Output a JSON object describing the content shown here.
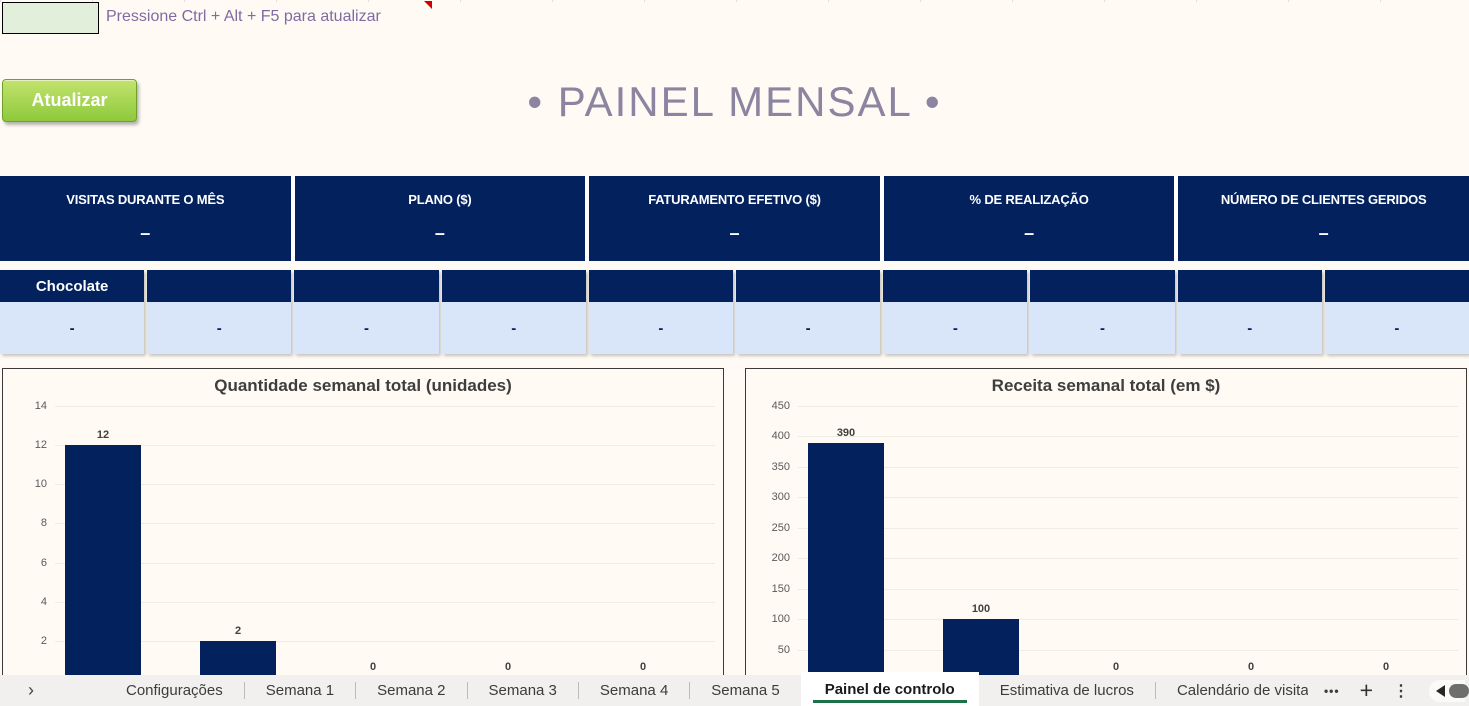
{
  "topbar": {
    "hint": "Pressione Ctrl + Alt + F5 para atualizar"
  },
  "refresh_button": {
    "label": "Atualizar"
  },
  "title": "• PAINEL MENSAL •",
  "colors": {
    "navy": "#03215C",
    "light_blue": "#D9E5F9",
    "page_bg": "#FFFBF4",
    "hint_green_cell": "#E2EFDA",
    "button_green": "#8FC93C",
    "title_purple": "#8B85A1",
    "hint_purple": "#7D6BA4",
    "active_tab_green": "#1E7145",
    "comment_red": "#D00000"
  },
  "kpis": [
    {
      "label": "VISITAS DURANTE O MÊS",
      "value": "–"
    },
    {
      "label": "PLANO ($)",
      "value": "–"
    },
    {
      "label": "FATURAMENTO EFETIVO ($)",
      "value": "–"
    },
    {
      "label": "% DE REALIZAÇÃO",
      "value": "–"
    },
    {
      "label": "NÚMERO DE CLIENTES GERIDOS",
      "value": "–"
    }
  ],
  "product_cards": [
    {
      "label": "Chocolate",
      "value": "-"
    },
    {
      "label": "",
      "value": "-"
    },
    {
      "label": "",
      "value": "-"
    },
    {
      "label": "",
      "value": "-"
    },
    {
      "label": "",
      "value": "-"
    },
    {
      "label": "",
      "value": "-"
    },
    {
      "label": "",
      "value": "-"
    },
    {
      "label": "",
      "value": "-"
    },
    {
      "label": "",
      "value": "-"
    },
    {
      "label": "",
      "value": "-"
    }
  ],
  "chart_data": [
    {
      "type": "bar",
      "title": "Quantidade semanal total (unidades)",
      "categories": [
        "",
        "",
        "",
        "",
        ""
      ],
      "values": [
        12,
        2,
        0,
        0,
        0
      ],
      "data_labels": [
        "12",
        "2",
        "0",
        "0",
        "0"
      ],
      "ylim": [
        0,
        14
      ],
      "ytick_step": 2,
      "yticks": [
        2,
        4,
        6,
        8,
        10,
        12,
        14
      ],
      "bar_color": "#03215C",
      "grid": true,
      "legend": "none"
    },
    {
      "type": "bar",
      "title": "Receita semanal total (em $)",
      "categories": [
        "",
        "",
        "",
        "",
        ""
      ],
      "values": [
        390,
        100,
        0,
        0,
        0
      ],
      "data_labels": [
        "390",
        "100",
        "0",
        "0",
        "0"
      ],
      "ylim": [
        0,
        450
      ],
      "ytick_step": 50,
      "yticks": [
        50,
        100,
        150,
        200,
        250,
        300,
        350,
        400,
        450
      ],
      "bar_color": "#03215C",
      "grid": true,
      "legend": "none"
    }
  ],
  "sheet_tabs": {
    "nav_arrow": "›",
    "tabs": [
      {
        "label": "Configurações",
        "active": false
      },
      {
        "label": "Semana 1",
        "active": false
      },
      {
        "label": "Semana 2",
        "active": false
      },
      {
        "label": "Semana 3",
        "active": false
      },
      {
        "label": "Semana 4",
        "active": false
      },
      {
        "label": "Semana 5",
        "active": false
      },
      {
        "label": "Painel de controlo",
        "active": true
      },
      {
        "label": "Estimativa de lucros",
        "active": false
      },
      {
        "label": "Calendário de visitas",
        "active": false
      }
    ],
    "more_label": "•••",
    "add_label": "+",
    "menu_label": "⋮"
  }
}
